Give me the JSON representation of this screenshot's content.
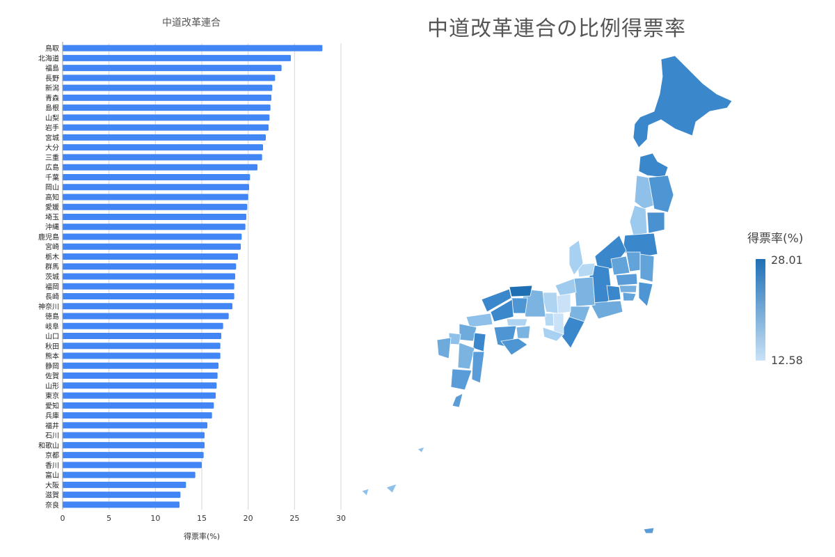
{
  "bar_chart": {
    "title": "中道改革連合",
    "xlabel": "得票率(%)",
    "bar_color": "#4285f4"
  },
  "map": {
    "title": "中道改革連合の比例得票率",
    "legend": {
      "title": "得票率(%)",
      "max": "28.01",
      "min": "12.58",
      "color_max": "#1f6fb4",
      "color_min": "#c9e2f7"
    }
  },
  "chart_data": [
    {
      "type": "bar",
      "orientation": "horizontal",
      "title": "中道改革連合",
      "xlabel": "得票率(%)",
      "ylabel": "",
      "xlim": [
        0,
        30
      ],
      "xticks": [
        0,
        5,
        10,
        15,
        20,
        25,
        30
      ],
      "grid": true,
      "categories": [
        "鳥取",
        "北海道",
        "福島",
        "長野",
        "新潟",
        "青森",
        "島根",
        "山梨",
        "岩手",
        "宮城",
        "大分",
        "三重",
        "広島",
        "千葉",
        "岡山",
        "高知",
        "愛媛",
        "埼玉",
        "沖縄",
        "鹿児島",
        "宮崎",
        "栃木",
        "群馬",
        "茨城",
        "福岡",
        "長崎",
        "神奈川",
        "徳島",
        "岐阜",
        "山口",
        "秋田",
        "熊本",
        "静岡",
        "佐賀",
        "山形",
        "東京",
        "愛知",
        "兵庫",
        "福井",
        "石川",
        "和歌山",
        "京都",
        "香川",
        "富山",
        "大阪",
        "滋賀",
        "奈良"
      ],
      "values": [
        28.0,
        24.6,
        23.6,
        22.9,
        22.6,
        22.5,
        22.4,
        22.3,
        22.2,
        21.9,
        21.6,
        21.5,
        21.0,
        20.2,
        20.1,
        20.0,
        19.9,
        19.8,
        19.7,
        19.3,
        19.2,
        18.9,
        18.7,
        18.6,
        18.5,
        18.5,
        18.3,
        17.9,
        17.3,
        17.1,
        17.0,
        17.0,
        16.8,
        16.7,
        16.6,
        16.5,
        16.3,
        16.1,
        15.6,
        15.3,
        15.3,
        15.2,
        15.0,
        14.3,
        13.3,
        12.7,
        12.6
      ]
    },
    {
      "type": "heatmap",
      "subtype": "choropleth",
      "title": "中道改革連合の比例得票率",
      "legend_title": "得票率(%)",
      "range": [
        12.58,
        28.01
      ],
      "legend_placement": "right"
    }
  ]
}
